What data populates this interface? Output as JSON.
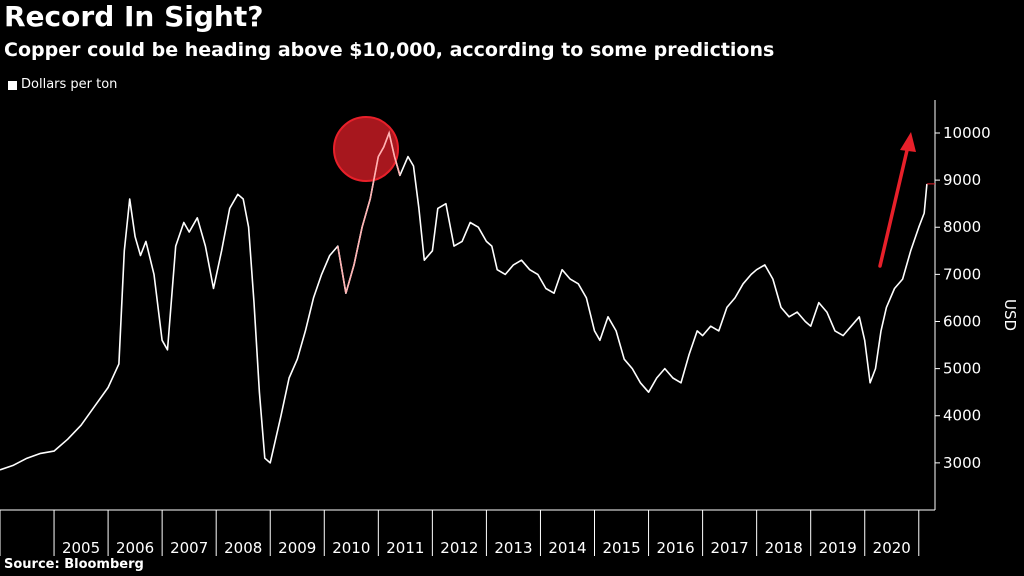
{
  "header": {
    "title": "Record In Sight?",
    "subtitle": "Copper could be heading above $10,000, according to some predictions"
  },
  "legend": {
    "label": "Dollars per ton"
  },
  "footer": {
    "source": "Source: Bloomberg"
  },
  "colors": {
    "background": "#000000",
    "line": "#ffffff",
    "highlight": "#e8202a",
    "arrow": "#e8202a"
  },
  "chart_data": {
    "type": "line",
    "ylabel": "USD",
    "ylim": [
      2000,
      10700
    ],
    "yticks": [
      3000,
      4000,
      5000,
      6000,
      7000,
      8000,
      9000,
      10000
    ],
    "ytick_labels": [
      "3000",
      "4000",
      "5000",
      "6000",
      "7000",
      "8000",
      "9000",
      "10000"
    ],
    "xlim": [
      2004.0,
      2021.3
    ],
    "xticks": [
      2005,
      2006,
      2007,
      2008,
      2009,
      2010,
      2011,
      2012,
      2013,
      2014,
      2015,
      2016,
      2017,
      2018,
      2019,
      2020
    ],
    "xtick_labels": [
      "2005",
      "2006",
      "2007",
      "2008",
      "2009",
      "2010",
      "2011",
      "2012",
      "2013",
      "2014",
      "2015",
      "2016",
      "2017",
      "2018",
      "2019",
      "2020"
    ],
    "last_value": 8920,
    "grid": false,
    "series": [
      {
        "name": "Dollars per ton",
        "x": [
          2004.0,
          2004.25,
          2004.5,
          2004.75,
          2005.0,
          2005.25,
          2005.5,
          2005.75,
          2006.0,
          2006.2,
          2006.3,
          2006.4,
          2006.5,
          2006.6,
          2006.7,
          2006.85,
          2007.0,
          2007.1,
          2007.25,
          2007.4,
          2007.5,
          2007.65,
          2007.8,
          2007.95,
          2008.1,
          2008.25,
          2008.4,
          2008.5,
          2008.6,
          2008.7,
          2008.8,
          2008.9,
          2009.0,
          2009.1,
          2009.2,
          2009.35,
          2009.5,
          2009.65,
          2009.8,
          2009.95,
          2010.1,
          2010.25,
          2010.4,
          2010.55,
          2010.7,
          2010.85,
          2011.0,
          2011.1,
          2011.2,
          2011.3,
          2011.4,
          2011.55,
          2011.65,
          2011.75,
          2011.85,
          2012.0,
          2012.1,
          2012.25,
          2012.4,
          2012.55,
          2012.7,
          2012.85,
          2013.0,
          2013.1,
          2013.2,
          2013.35,
          2013.5,
          2013.65,
          2013.8,
          2013.95,
          2014.1,
          2014.25,
          2014.4,
          2014.55,
          2014.7,
          2014.85,
          2015.0,
          2015.1,
          2015.25,
          2015.4,
          2015.55,
          2015.7,
          2015.85,
          2016.0,
          2016.15,
          2016.3,
          2016.45,
          2016.6,
          2016.75,
          2016.9,
          2017.0,
          2017.15,
          2017.3,
          2017.45,
          2017.6,
          2017.75,
          2017.9,
          2018.0,
          2018.15,
          2018.3,
          2018.45,
          2018.6,
          2018.75,
          2018.9,
          2019.0,
          2019.15,
          2019.3,
          2019.45,
          2019.6,
          2019.75,
          2019.9,
          2020.0,
          2020.1,
          2020.2,
          2020.3,
          2020.4,
          2020.55,
          2020.7,
          2020.85,
          2021.0,
          2021.1,
          2021.15
        ],
        "values": [
          2850,
          2950,
          3100,
          3200,
          3250,
          3500,
          3800,
          4200,
          4600,
          5100,
          7500,
          8600,
          7800,
          7400,
          7700,
          7000,
          5600,
          5400,
          7600,
          8100,
          7900,
          8200,
          7600,
          6700,
          7500,
          8400,
          8700,
          8600,
          8000,
          6400,
          4500,
          3100,
          3000,
          3500,
          4000,
          4800,
          5200,
          5800,
          6500,
          7000,
          7400,
          7600,
          6600,
          7200,
          8000,
          8600,
          9500,
          9700,
          10000,
          9500,
          9100,
          9500,
          9300,
          8400,
          7300,
          7500,
          8400,
          8500,
          7600,
          7700,
          8100,
          8000,
          7700,
          7600,
          7100,
          7000,
          7200,
          7300,
          7100,
          7000,
          6700,
          6600,
          7100,
          6900,
          6800,
          6500,
          5800,
          5600,
          6100,
          5800,
          5200,
          5000,
          4700,
          4500,
          4800,
          5000,
          4800,
          4700,
          5300,
          5800,
          5700,
          5900,
          5800,
          6300,
          6500,
          6800,
          7000,
          7100,
          7200,
          6900,
          6300,
          6100,
          6200,
          6000,
          5900,
          6400,
          6200,
          5800,
          5700,
          5900,
          6100,
          5600,
          4700,
          5000,
          5800,
          6300,
          6700,
          6900,
          7500,
          8000,
          8300,
          8920
        ]
      }
    ]
  }
}
